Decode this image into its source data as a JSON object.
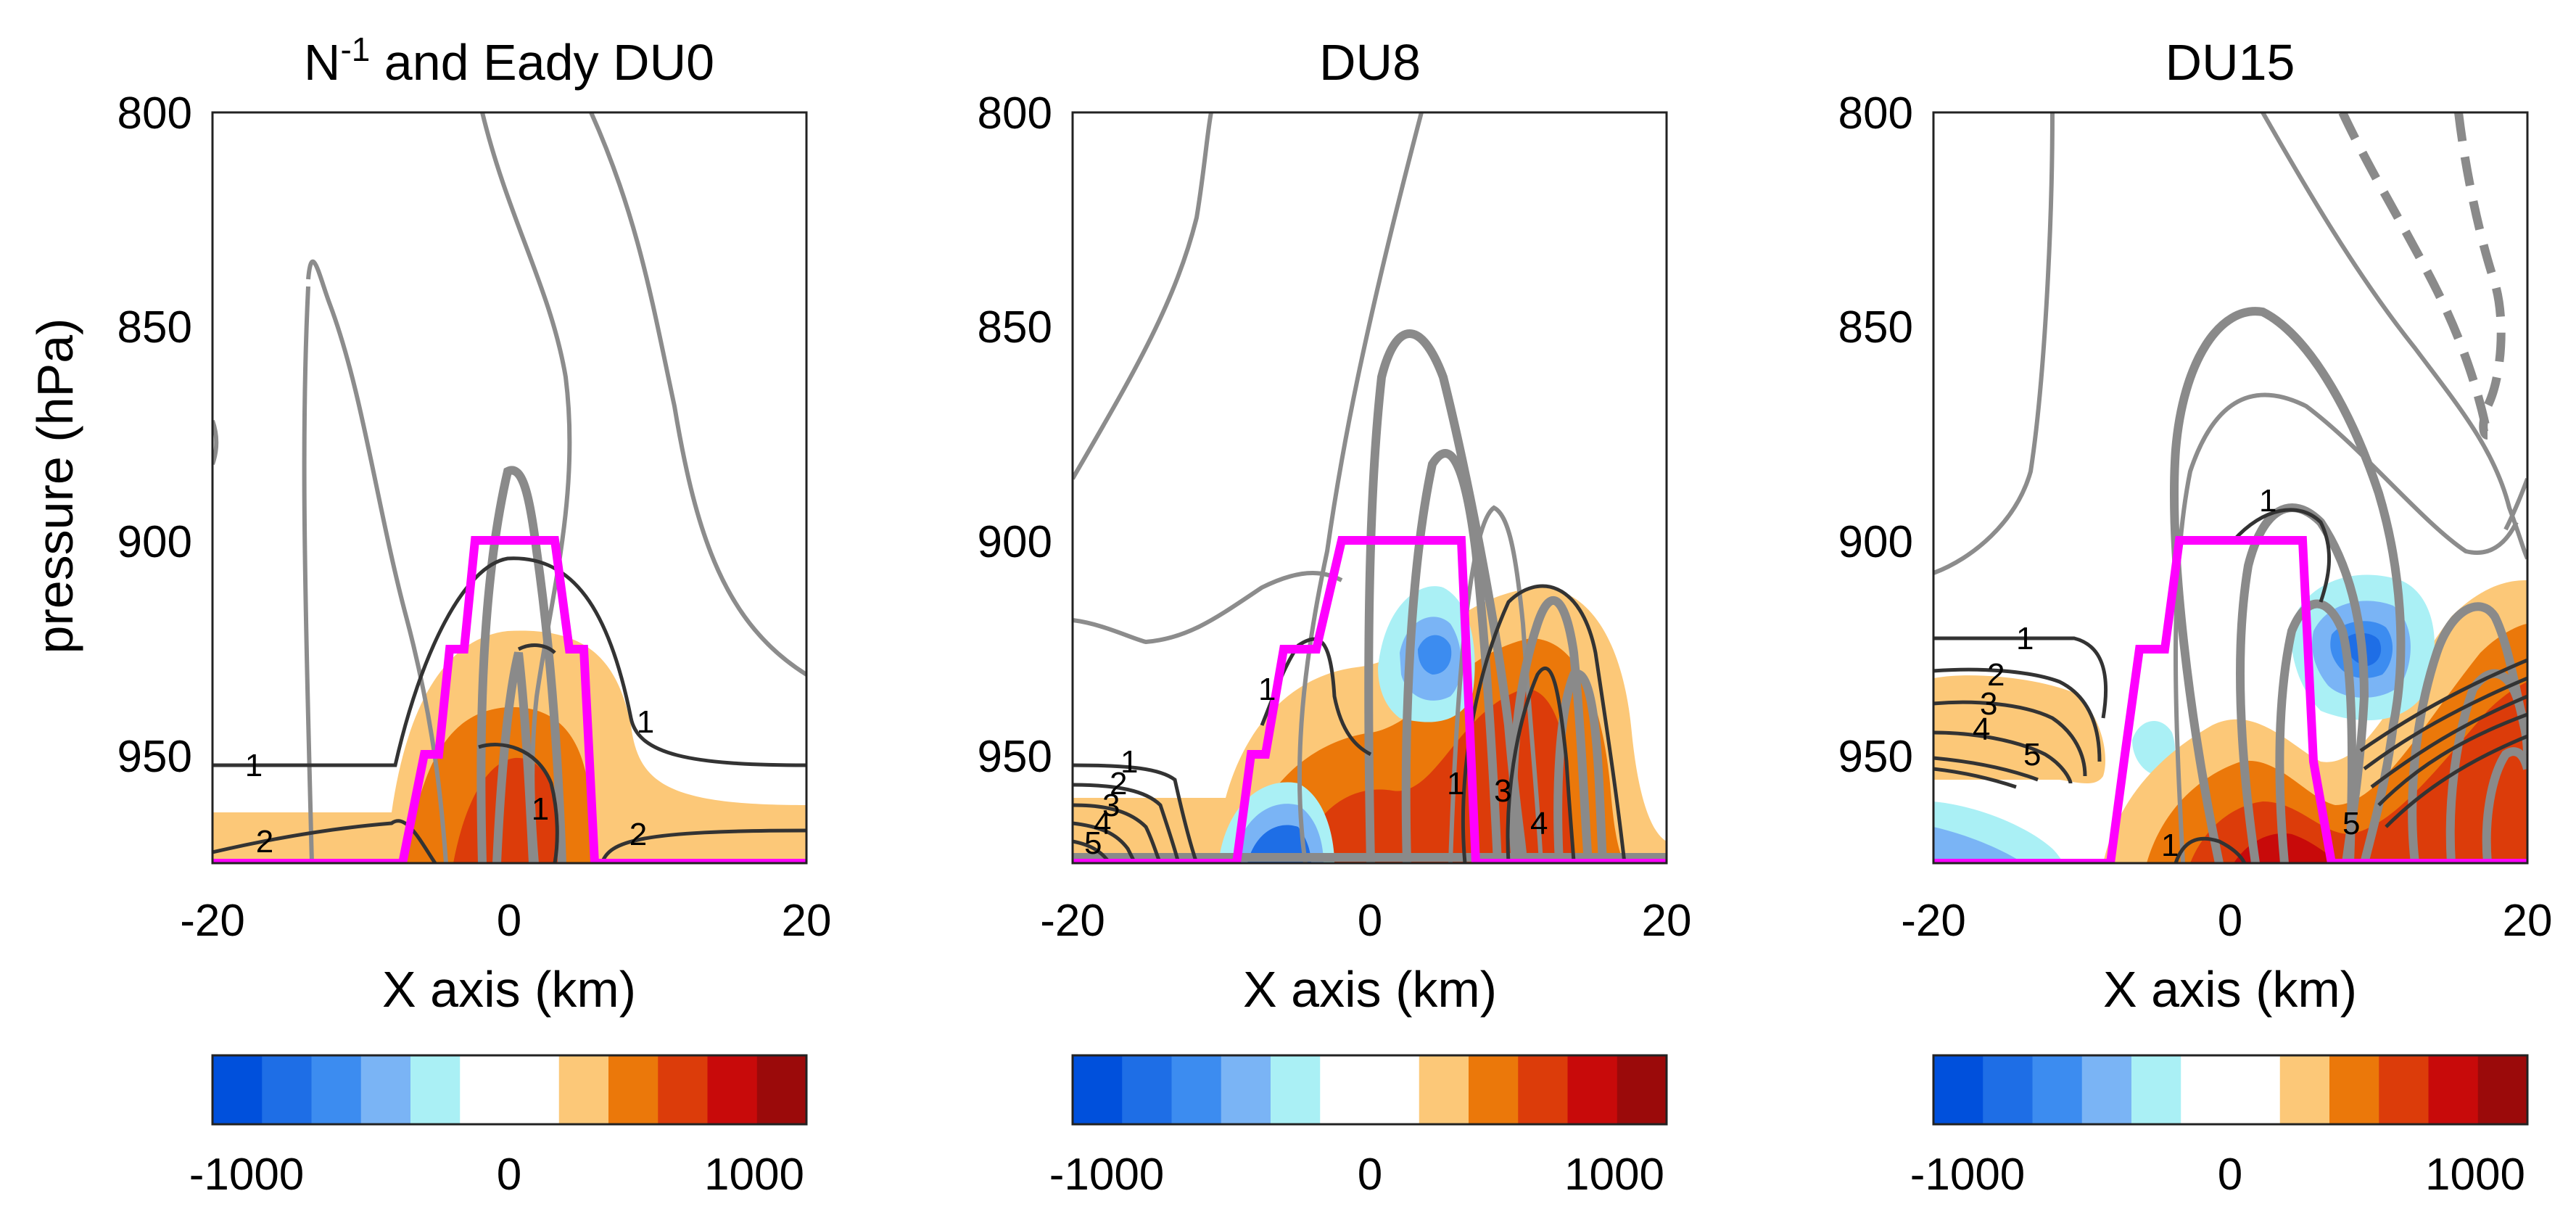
{
  "chart_data": [
    {
      "type": "contour",
      "panel": "left",
      "title_base": "N",
      "title_superscript": "-1",
      "title_rest": " and Eady DU0",
      "ylabel": "pressure (hPa)",
      "xlabel": "X axis (km)",
      "xlim": [
        -20,
        20
      ],
      "ylim": [
        800,
        975
      ],
      "xticks": [
        -20,
        0,
        20
      ],
      "yticks": [
        800,
        850,
        900,
        950
      ],
      "contour_labels": [
        "1",
        "2",
        "1",
        "1",
        "2"
      ],
      "colorbar": {
        "ticks": [
          "-1000",
          "0",
          "1000"
        ],
        "range": [
          -1000,
          1000
        ]
      }
    },
    {
      "type": "contour",
      "panel": "middle",
      "title": "DU8",
      "xlabel": "X axis (km)",
      "xlim": [
        -20,
        20
      ],
      "ylim": [
        800,
        975
      ],
      "xticks": [
        -20,
        0,
        20
      ],
      "yticks": [
        800,
        850,
        900,
        950
      ],
      "contour_labels": [
        "1",
        "2",
        "3",
        "4",
        "5",
        "1",
        "1",
        "3",
        "4"
      ],
      "colorbar": {
        "ticks": [
          "-1000",
          "0",
          "1000"
        ],
        "range": [
          -1000,
          1000
        ]
      }
    },
    {
      "type": "contour",
      "panel": "right",
      "title": "DU15",
      "xlabel": "X axis (km)",
      "xlim": [
        -20,
        20
      ],
      "ylim": [
        800,
        975
      ],
      "xticks": [
        -20,
        0,
        20
      ],
      "yticks": [
        800,
        850,
        900,
        950
      ],
      "contour_labels": [
        "1",
        "2",
        "3",
        "4",
        "5",
        "1",
        "1",
        "5"
      ],
      "colorbar": {
        "ticks": [
          "-1000",
          "0",
          "1000"
        ],
        "range": [
          -1000,
          1000
        ]
      }
    }
  ],
  "colors": {
    "mountain": "#ff00ff",
    "contour_thin": "#8c8c8c",
    "contour_thick": "#8a8a8a",
    "contour_dark": "#333333",
    "colormap": [
      "#0050dc",
      "#1e6ee6",
      "#3c8cf0",
      "#7ab4f5",
      "#aaf0f5",
      "#ffffff",
      "#ffffff",
      "#fcc878",
      "#eb780a",
      "#dc3c0a",
      "#c80a0a",
      "#9b0a0a"
    ]
  }
}
